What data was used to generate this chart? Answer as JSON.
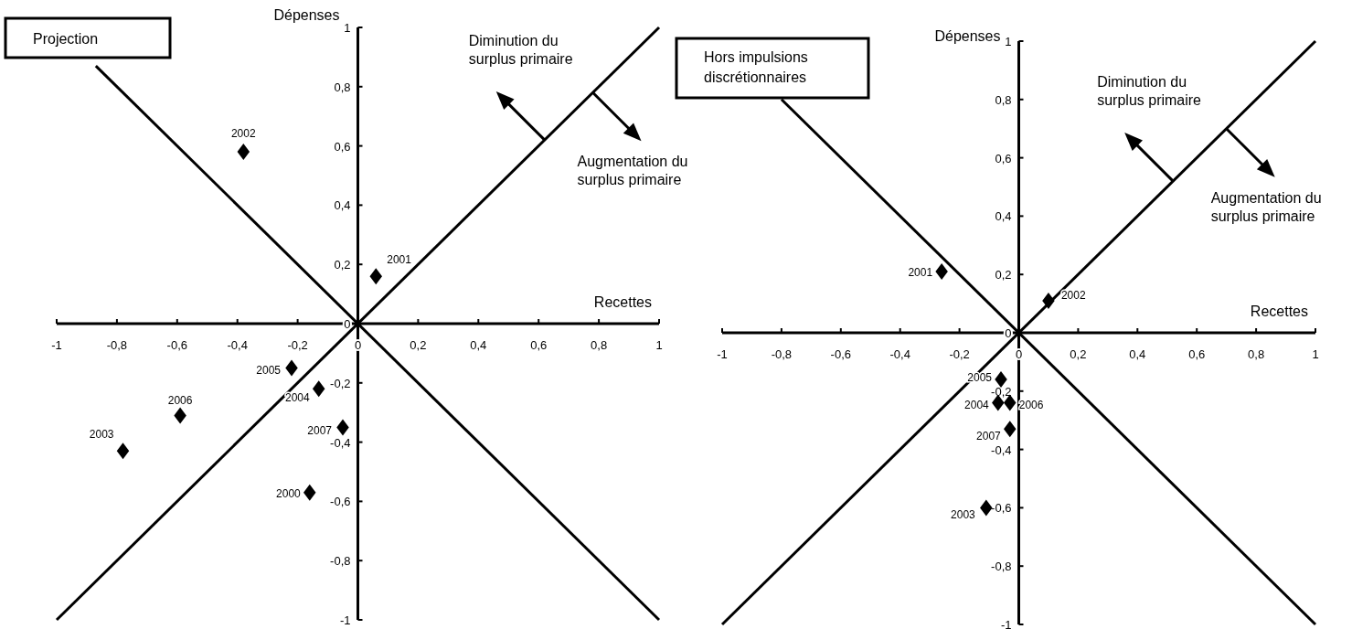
{
  "chart_data": [
    {
      "type": "scatter",
      "title": "Projection",
      "xlabel": "Recettes",
      "ylabel": "Dépenses",
      "xlim": [
        -1,
        1
      ],
      "ylim": [
        -1,
        1
      ],
      "xticks": [
        -1,
        {
          "value": -0.8,
          "label": "-0,8"
        },
        {
          "value": -0.6,
          "label": "-0,6"
        },
        {
          "value": -0.4,
          "label": "-0,4"
        },
        {
          "value": -0.2,
          "label": "-0,2"
        },
        0,
        {
          "value": 0.2,
          "label": "0,2"
        },
        {
          "value": 0.4,
          "label": "0,4"
        },
        {
          "value": 0.6,
          "label": "0,6"
        },
        {
          "value": 0.8,
          "label": "0,8"
        },
        1
      ],
      "yticks": [
        -1,
        {
          "value": -0.8,
          "label": "-0,8"
        },
        {
          "value": -0.6,
          "label": "-0,6"
        },
        {
          "value": -0.4,
          "label": "-0,4"
        },
        {
          "value": -0.2,
          "label": "-0,2"
        },
        0,
        {
          "value": 0.2,
          "label": "0,2"
        },
        {
          "value": 0.4,
          "label": "0,4"
        },
        {
          "value": 0.6,
          "label": "0,6"
        },
        {
          "value": 0.8,
          "label": "0,8"
        },
        1
      ],
      "grid": false,
      "marker": "diamond",
      "series": [
        {
          "type": "line",
          "color": "#000000",
          "marker": "none",
          "x": [
            -1,
            1
          ],
          "values": [
            -1,
            1
          ]
        },
        {
          "type": "line",
          "color": "#000000",
          "marker": "none",
          "x": [
            -0.87,
            1
          ],
          "values": [
            0.87,
            -1
          ]
        },
        {
          "type": "scatter",
          "color": "#000000",
          "x": [
            -0.16,
            0.06,
            -0.38,
            -0.78,
            -0.13,
            -0.22,
            -0.59,
            -0.05
          ],
          "values": [
            -0.57,
            0.16,
            0.58,
            -0.43,
            -0.22,
            -0.15,
            -0.31,
            -0.35
          ]
        }
      ],
      "annotations": [
        "Diminution du surplus primaire",
        "Augmentation du surplus primaire",
        {
          "text": "2000",
          "x": -0.16,
          "y": -0.57
        },
        {
          "text": "2001",
          "x": 0.06,
          "y": 0.16
        },
        {
          "text": "2002",
          "x": -0.38,
          "y": 0.58
        },
        {
          "text": "2003",
          "x": -0.78,
          "y": -0.43
        },
        {
          "text": "2004",
          "x": -0.13,
          "y": -0.22
        },
        {
          "text": "2005",
          "x": -0.22,
          "y": -0.15
        },
        {
          "text": "2006",
          "x": -0.59,
          "y": -0.31
        },
        {
          "text": "2007",
          "x": -0.05,
          "y": -0.35
        }
      ]
    },
    {
      "type": "scatter",
      "title": "Hors impulsions discrétionnaires",
      "xlabel": "Recettes",
      "ylabel": "Dépenses",
      "xlim": [
        -1,
        1
      ],
      "ylim": [
        -1,
        1
      ],
      "xticks": [
        -1,
        {
          "value": -0.8,
          "label": "-0,8"
        },
        {
          "value": -0.6,
          "label": "-0,6"
        },
        {
          "value": -0.4,
          "label": "-0,4"
        },
        {
          "value": -0.2,
          "label": "-0,2"
        },
        0,
        {
          "value": 0.2,
          "label": "0,2"
        },
        {
          "value": 0.4,
          "label": "0,4"
        },
        {
          "value": 0.6,
          "label": "0,6"
        },
        {
          "value": 0.8,
          "label": "0,8"
        },
        1
      ],
      "yticks": [
        -1,
        {
          "value": -0.8,
          "label": "-0,8"
        },
        {
          "value": -0.6,
          "label": "-0,6"
        },
        {
          "value": -0.4,
          "label": "-0,4"
        },
        {
          "value": -0.2,
          "label": "-0,2"
        },
        0,
        {
          "value": 0.2,
          "label": "0,2"
        },
        {
          "value": 0.4,
          "label": "0,4"
        },
        {
          "value": 0.6,
          "label": "0,6"
        },
        {
          "value": 0.8,
          "label": "0,8"
        },
        1
      ],
      "grid": false,
      "marker": "diamond",
      "series": [
        {
          "type": "line",
          "color": "#000000",
          "marker": "none",
          "x": [
            -1,
            1
          ],
          "values": [
            -1,
            1
          ]
        },
        {
          "type": "line",
          "color": "#000000",
          "marker": "none",
          "x": [
            -0.8,
            1
          ],
          "values": [
            0.8,
            -1
          ]
        },
        {
          "type": "scatter",
          "color": "#000000",
          "x": [
            -0.26,
            0.1,
            -0.11,
            -0.07,
            -0.06,
            -0.03,
            -0.03
          ],
          "values": [
            0.21,
            0.11,
            -0.6,
            -0.24,
            -0.16,
            -0.24,
            -0.33
          ]
        }
      ],
      "annotations": [
        "Diminution du surplus primaire",
        "Augmentation du surplus primaire",
        {
          "text": "2001",
          "x": -0.26,
          "y": 0.21
        },
        {
          "text": "2002",
          "x": 0.1,
          "y": 0.11
        },
        {
          "text": "2003",
          "x": -0.11,
          "y": -0.6
        },
        {
          "text": "2004",
          "x": -0.07,
          "y": -0.24
        },
        {
          "text": "2005",
          "x": -0.06,
          "y": -0.16
        },
        {
          "text": "2006",
          "x": -0.03,
          "y": -0.24
        },
        {
          "text": "2007",
          "x": -0.03,
          "y": -0.33
        }
      ]
    }
  ]
}
